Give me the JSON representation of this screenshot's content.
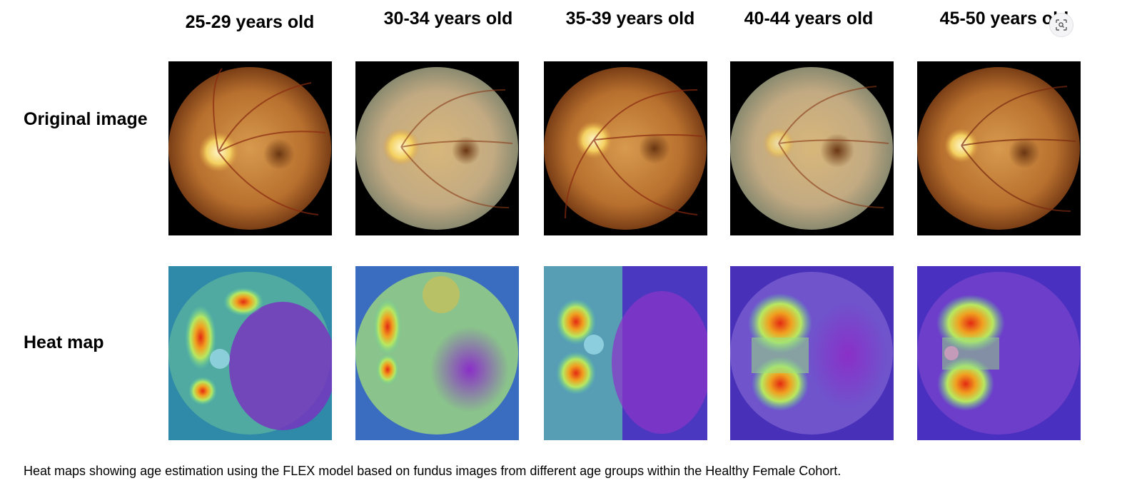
{
  "columns": [
    {
      "label": "25-29 years old"
    },
    {
      "label": "30-34 years old"
    },
    {
      "label": "35-39 years old"
    },
    {
      "label": "40-44 years old"
    },
    {
      "label": "45-50 years old"
    }
  ],
  "rows": {
    "original_label": "Original image",
    "heatmap_label": "Heat map"
  },
  "caption": "Heat maps showing age estimation using the FLEX model based on fundus images from different age groups within the Healthy Female Cohort.",
  "icons": {
    "visual_search": "lens-scan-icon"
  },
  "colors": {
    "fundus_background": "#000000",
    "fundus_warm": "#c8803a",
    "fundus_pale": "#c9b792",
    "heat_low": "#4a2ab8",
    "heat_mid": "#7fe07a",
    "heat_high": "#e02a10"
  }
}
